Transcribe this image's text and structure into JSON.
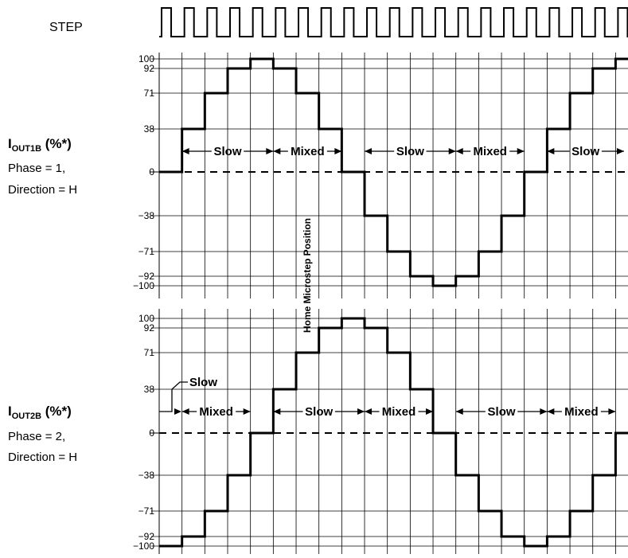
{
  "step_label": "STEP",
  "panels": [
    {
      "id": "out1b",
      "label_main": "I",
      "label_sub": "OUT1B",
      "label_suffix": " (%*)",
      "phase": "Phase = 1,",
      "direction": "Direction = H"
    },
    {
      "id": "out2b",
      "label_main": "I",
      "label_sub": "OUT2B",
      "label_suffix": " (%*)",
      "phase": "Phase = 2,",
      "direction": "Direction = H"
    }
  ],
  "y_ticks": [
    "100",
    "92",
    "71",
    "38",
    "0",
    "−38",
    "−71",
    "−92",
    "−100"
  ],
  "home_label": "Home Microstep Position",
  "mode_labels": {
    "slow": "Slow",
    "mixed": "Mixed"
  },
  "chart_data": {
    "type": "line",
    "step_pulses": 21,
    "x_steps": [
      0,
      1,
      2,
      3,
      4,
      5,
      6,
      7,
      8,
      9,
      10,
      11,
      12,
      13,
      14,
      15,
      16,
      17,
      18,
      19,
      20,
      21
    ],
    "ylim": [
      -100,
      100
    ],
    "series": [
      {
        "values": [
          0,
          38,
          71,
          92,
          100,
          92,
          71,
          38,
          0,
          -38,
          -71,
          -92,
          -100,
          -92,
          -71,
          -38,
          0,
          38,
          71,
          92,
          100
        ]
      },
      {
        "values": [
          -100,
          -92,
          -71,
          -38,
          0,
          38,
          71,
          92,
          100,
          92,
          71,
          38,
          0,
          -38,
          -71,
          -92,
          -100,
          -92,
          -71,
          -38,
          0
        ]
      }
    ],
    "decay_modes_out1b": [
      "Slow",
      "Mixed",
      "Slow",
      "Mixed",
      "Slow"
    ],
    "decay_modes_out2b": [
      "Slow",
      "Mixed",
      "Slow",
      "Mixed",
      "Slow",
      "Mixed"
    ]
  }
}
